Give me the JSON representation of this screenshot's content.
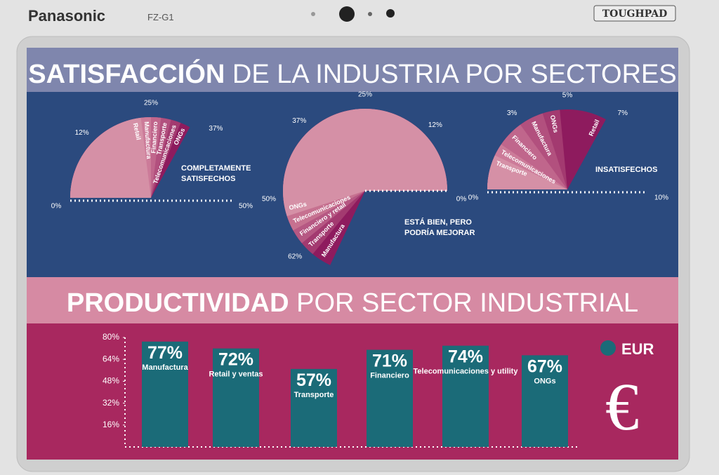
{
  "device": {
    "brand": "Panasonic",
    "model": "FZ-G1",
    "badge": "TOUGHPAD"
  },
  "section_1": {
    "title_strong": "SATISFACCIÓN",
    "title": "DE LA INDUSTRIA POR SECTORES"
  },
  "section_2": {
    "title_strong": "PRODUCTIVIDAD",
    "title": "POR SECTOR INDUSTRIAL"
  },
  "chart_data": [
    {
      "type": "fan",
      "title_lines": [
        "COMPLETAMENTE",
        "SATISFECHOS"
      ],
      "xlim": [
        0,
        50
      ],
      "xticks": [
        {
          "value": 0,
          "label": "0%"
        },
        {
          "value": 12,
          "label": "12%"
        },
        {
          "value": 25,
          "label": "25%"
        },
        {
          "value": 37,
          "label": "37%"
        },
        {
          "value": 50,
          "label": "50%"
        }
      ],
      "categories": [
        "Retail",
        "Manufactura",
        "Financiero",
        "Transporte",
        "Telecomunicaciones",
        "ONGs"
      ],
      "values": [
        23,
        25,
        27,
        29,
        31,
        33
      ],
      "colors": [
        "#d590a6",
        "#cc7b99",
        "#c0668c",
        "#b2507e",
        "#a33a70",
        "#8e1b5e"
      ]
    },
    {
      "type": "fan",
      "title_lines": [
        "ESTÁ BIEN, PERO",
        "PODRÍA MEJORAR"
      ],
      "xlim": [
        0,
        100
      ],
      "xticks": [
        {
          "value": 0,
          "label": "0%"
        },
        {
          "value": 12,
          "label": "12%"
        },
        {
          "value": 25,
          "label": "25%"
        },
        {
          "value": 37,
          "label": "37%"
        },
        {
          "value": 50,
          "label": "50%"
        },
        {
          "value": 62,
          "label": "62%"
        }
      ],
      "categories": [
        "ONGs",
        "Telecomunicaciones",
        "Financiero y retail",
        "Transporte",
        "Manufactura"
      ],
      "values": [
        55,
        58,
        61,
        64,
        68
      ],
      "colors": [
        "#d590a6",
        "#c67190",
        "#b65883",
        "#a33a70",
        "#8e1b5e"
      ]
    },
    {
      "type": "fan",
      "title_lines": [
        "INSATISFECHOS"
      ],
      "xlim": [
        0,
        10
      ],
      "xticks": [
        {
          "value": 0,
          "label": "0%"
        },
        {
          "value": 3,
          "label": "3%"
        },
        {
          "value": 5,
          "label": "5%"
        },
        {
          "value": 7,
          "label": "7%"
        },
        {
          "value": 10,
          "label": "10%"
        }
      ],
      "categories": [
        "Transporte",
        "Telecomunicaciones",
        "Financiero",
        "Manufactura",
        "ONGs",
        "Retail"
      ],
      "values": [
        1.4,
        1.9,
        3.0,
        4.0,
        4.7,
        6.6
      ],
      "colors": [
        "#d590a6",
        "#cc7b99",
        "#c0668c",
        "#b2507e",
        "#a33a70",
        "#8e1b5e"
      ]
    },
    {
      "type": "bar",
      "ylim": [
        0,
        80
      ],
      "yticks": [
        {
          "value": 16,
          "label": "16%"
        },
        {
          "value": 32,
          "label": "32%"
        },
        {
          "value": 48,
          "label": "48%"
        },
        {
          "value": 64,
          "label": "64%"
        },
        {
          "value": 80,
          "label": "80%"
        }
      ],
      "categories": [
        "Manufactura",
        "Retail y ventas",
        "Transporte",
        "Financiero",
        "Telecomunicaciones y utility",
        "ONGs"
      ],
      "series": [
        {
          "name": "EUR",
          "color": "#1b6b78",
          "values": [
            77,
            72,
            57,
            71,
            74,
            67
          ],
          "value_labels": [
            "77%",
            "72%",
            "57%",
            "71%",
            "74%",
            "67%"
          ]
        }
      ],
      "symbol": "€"
    }
  ]
}
